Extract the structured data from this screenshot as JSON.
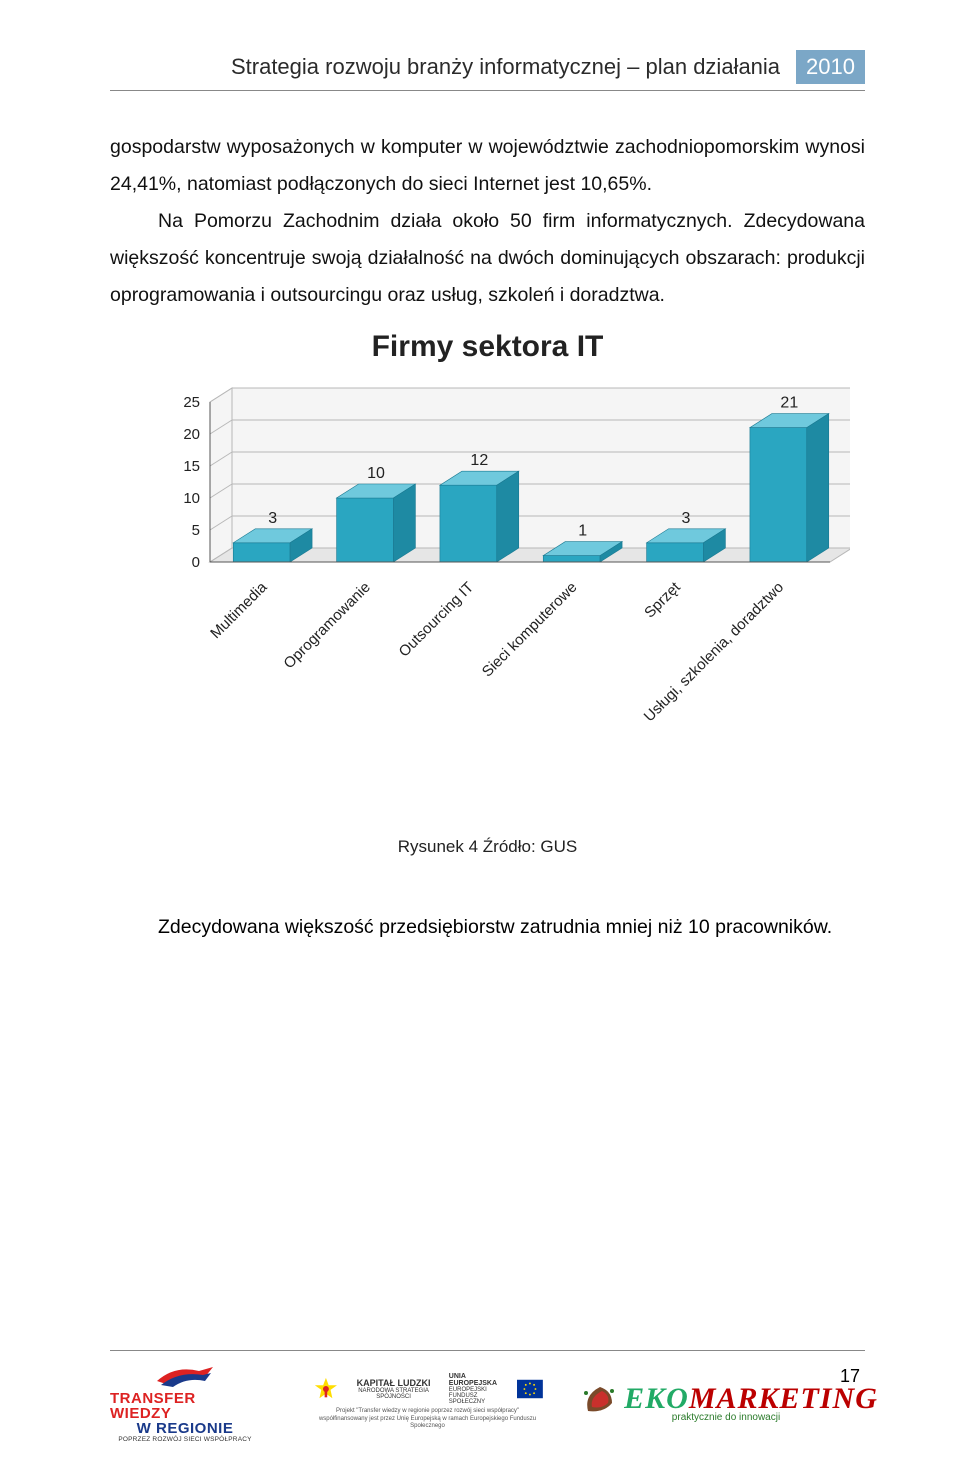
{
  "header": {
    "title": "Strategia rozwoju branży informatycznej – plan działania",
    "year": "2010"
  },
  "paragraphs": {
    "p1": "gospodarstw wyposażonych w komputer w województwie zachodniopomorskim wynosi 24,41%, natomiast podłączonych do sieci Internet jest 10,65%.",
    "p2": "Na Pomorzu Zachodnim działa około 50 firm informatycznych. Zdecydowana większość koncentruje swoją działalność na dwóch dominujących obszarach: produkcji oprogramowania i outsourcingu oraz usług, szkoleń i doradztwa.",
    "p_after": "Zdecydowana większość przedsiębiorstw zatrudnia mniej niż 10 pracowników."
  },
  "chart": {
    "type": "bar-3d",
    "title": "Firmy sektora IT",
    "categories": [
      "Multimedia",
      "Oprogramowanie",
      "Outsourcing IT",
      "Sieci komputerowe",
      "Sprzęt",
      "Usługi, szkolenia, doradztwo"
    ],
    "values": [
      3,
      10,
      12,
      1,
      3,
      21
    ],
    "bar_face_color": "#2aa6c1",
    "bar_top_color": "#6fc9dd",
    "bar_side_color": "#1e8aa3",
    "floor_color": "#e6e6e6",
    "wall_color": "#f5f5f5",
    "grid_color": "#b8b8b8",
    "axis_color": "#555555",
    "ylim": [
      0,
      25
    ],
    "ytick_step": 5,
    "label_fontsize": 15,
    "value_label_fontsize": 16,
    "category_fontsize": 15,
    "caption": "Rysunek 4 Źródło: GUS"
  },
  "footer": {
    "page_number": "17",
    "transfer": {
      "line1": "TRANSFER WIEDZY",
      "line2": "W REGIONIE",
      "sub": "POPRZEZ ROZWÓJ SIECI WSPÓŁPRACY"
    },
    "kapital": {
      "title": "KAPITAŁ LUDZKI",
      "subtitle": "NARODOWA STRATEGIA SPÓJNOŚCI",
      "ue_top": "UNIA EUROPEJSKA",
      "ue_mid": "EUROPEJSKI",
      "ue_bot": "FUNDUSZ SPOŁECZNY",
      "desc": "Projekt \"Transfer wiedzy w regionie poprzez rozwój sieci współpracy\" współfinansowany jest przez Unię Europejską w ramach Europejskiego Funduszu Społecznego"
    },
    "eko": {
      "brand_eko": "EKO",
      "brand_mkt": "MARKETING",
      "tag": "praktycznie do innowacji"
    }
  }
}
